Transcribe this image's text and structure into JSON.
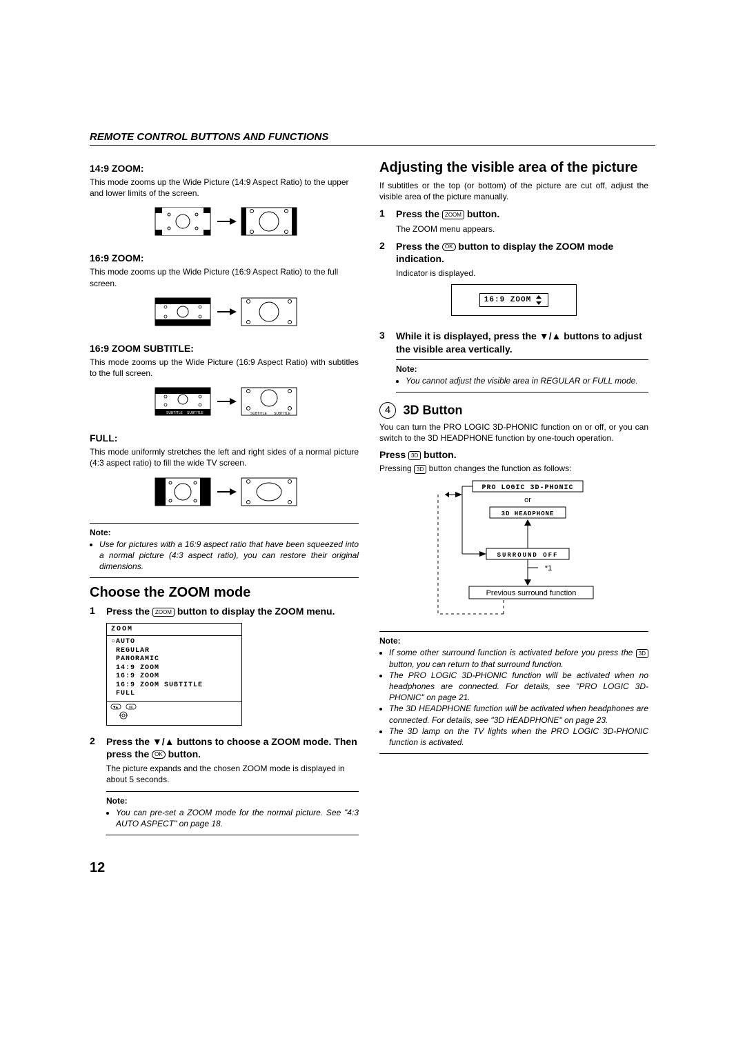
{
  "header": {
    "title": "REMOTE CONTROL BUTTONS AND FUNCTIONS"
  },
  "left": {
    "zoom149": {
      "title": "14:9 ZOOM:",
      "text": "This mode zooms up the Wide Picture (14:9 Aspect Ratio) to the upper and lower limits of the screen."
    },
    "zoom169": {
      "title": "16:9 ZOOM:",
      "text": "This mode zooms up the Wide Picture (16:9 Aspect Ratio) to the full screen."
    },
    "zoom169sub": {
      "title": "16:9 ZOOM SUBTITLE:",
      "text": "This mode zooms up the Wide Picture (16:9 Aspect Ratio) with subtitles to the full screen."
    },
    "full": {
      "title": "FULL:",
      "text": "This mode uniformly stretches the left and right sides of a normal picture (4:3 aspect ratio) to fill the wide TV screen."
    },
    "note1": {
      "label": "Note:",
      "item": "Use for pictures with a 16:9 aspect ratio that have been squeezed into a normal picture (4:3 aspect ratio), you can restore their original dimensions."
    },
    "choose": {
      "title": "Choose the ZOOM mode",
      "step1": "Press the      button to display the ZOOM menu.",
      "step1_btn": "ZOOM",
      "step2": "Press the ▼/▲ buttons to choose a ZOOM mode. Then press the      button.",
      "step2_btn": "OK",
      "step2_sub": "The picture expands and the chosen ZOOM mode is displayed in about 5 seconds.",
      "note_label": "Note:",
      "note_item": "You can pre-set a ZOOM mode for the normal picture. See \"4:3 AUTO ASPECT\" on page 18."
    },
    "menu": {
      "title": "ZOOM",
      "items": "○AUTO\n REGULAR\n PANORAMIC\n 14:9 ZOOM\n 16:9 ZOOM\n 16:9 ZOOM SUBTITLE\n FULL"
    }
  },
  "right": {
    "adjust": {
      "title": "Adjusting the visible area of the picture",
      "text": "If subtitles or the top (or bottom) of the picture are cut off, adjust the visible area of the picture manually.",
      "step1": "Press the      button.",
      "step1_btn": "ZOOM",
      "step1_sub": "The ZOOM menu appears.",
      "step2": "Press the      button to display the ZOOM mode indication.",
      "step2_btn": "OK",
      "step2_sub": "Indicator is displayed.",
      "indicator": "16:9 ZOOM",
      "step3": "While it is displayed, press the ▼/▲ buttons to adjust the visible area vertically.",
      "note_label": "Note:",
      "note_item": "You cannot adjust the visible area in REGULAR or FULL mode."
    },
    "d3": {
      "num": "4",
      "title": "3D Button",
      "text": "You can turn the PRO LOGIC 3D-PHONIC function on or off, or you can switch to the 3D HEADPHONE function by one-touch operation.",
      "press": "Press      button.",
      "press_btn": "3D",
      "press_sub_a": "Pressing ",
      "press_sub_b": " button changes the function as follows:",
      "diag": {
        "box1": "PRO LOGIC 3D-PHONIC",
        "or": "or",
        "box2": "3D HEADPHONE",
        "box3": "SURROUND OFF",
        "star": "*1",
        "box4": "Previous surround function"
      },
      "note_label": "Note:",
      "notes": [
        "If some other surround function is activated before you press the      button, you can return to that surround function.",
        "The PRO LOGIC 3D-PHONIC function will be activated when no headphones are connected. For details, see \"PRO LOGIC 3D-PHONIC\" on page 21.",
        "The 3D HEADPHONE function will be activated when headphones are connected. For details, see \"3D HEADPHONE\" on page 23.",
        "The 3D lamp on the TV lights when the PRO LOGIC 3D-PHONIC function is activated."
      ]
    }
  },
  "page_number": "12"
}
